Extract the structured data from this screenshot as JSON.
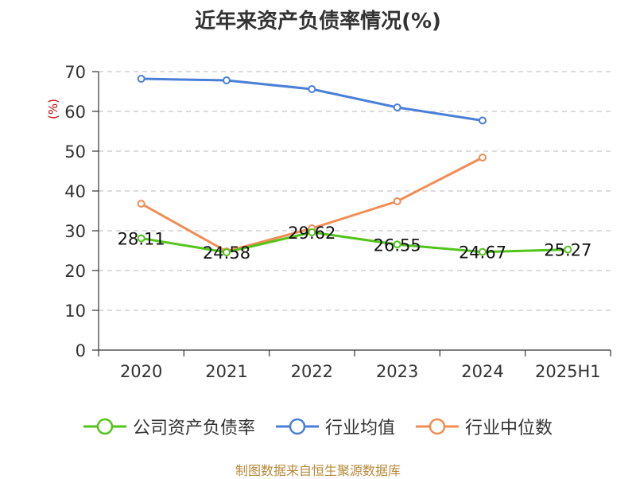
{
  "chart_data": {
    "type": "line",
    "title": "近年来资产负债率情况(%)",
    "ylabel": "(%)",
    "xlabel": "",
    "categories": [
      "2020",
      "2021",
      "2022",
      "2023",
      "2024",
      "2025H1"
    ],
    "ylim": [
      0,
      70
    ],
    "yticks": [
      0,
      10,
      20,
      30,
      40,
      50,
      60,
      70
    ],
    "grid": "horizontal dashed",
    "legend_position": "bottom",
    "series": [
      {
        "name": "公司资产负债率",
        "color": "#52c41a",
        "values": [
          28.11,
          24.58,
          29.62,
          26.55,
          24.67,
          25.27
        ],
        "labels": [
          "28.11",
          "24.58",
          "29.62",
          "26.55",
          "24.67",
          "25.27"
        ]
      },
      {
        "name": "行业均值",
        "color": "#4a7fd8",
        "values": [
          68.2,
          67.8,
          65.6,
          61.0,
          57.7,
          null
        ]
      },
      {
        "name": "行业中位数",
        "color": "#f28c52",
        "values": [
          36.8,
          24.8,
          30.6,
          37.4,
          48.4,
          null
        ]
      }
    ]
  },
  "source": "制图数据来自恒生聚源数据库"
}
